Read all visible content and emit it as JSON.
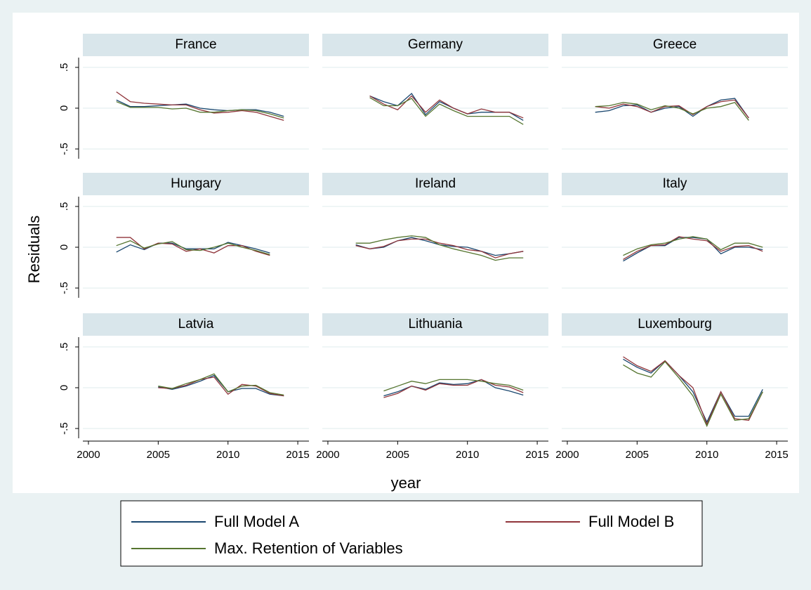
{
  "chart_data": {
    "type": "line",
    "xlabel": "year",
    "ylabel": "Residuals",
    "xlim": [
      1999.6,
      2015.8
    ],
    "xticks": [
      2000,
      2005,
      2010,
      2015
    ],
    "ylim": [
      -0.62,
      0.62
    ],
    "yticks": [
      {
        "value": 0.5,
        "label": ".5"
      },
      0,
      {
        "value": -0.5,
        "label": "-.5"
      }
    ],
    "grid": true,
    "series": [
      {
        "name": "Full Model A",
        "color": "#1a476f"
      },
      {
        "name": "Full Model B",
        "color": "#90353b"
      },
      {
        "name": "Max. Retention of Variables",
        "color": "#55752f"
      }
    ],
    "panels": [
      {
        "title": "France",
        "x": [
          2002,
          2003,
          2004,
          2005,
          2006,
          2007,
          2008,
          2009,
          2010,
          2011,
          2012,
          2013,
          2014
        ],
        "values": [
          [
            0.1,
            0.02,
            0.02,
            0.03,
            0.04,
            0.05,
            0,
            -0.02,
            -0.03,
            -0.02,
            -0.02,
            -0.05,
            -0.1
          ],
          [
            0.2,
            0.08,
            0.06,
            0.05,
            0.04,
            0.04,
            -0.02,
            -0.06,
            -0.05,
            -0.03,
            -0.05,
            -0.1,
            -0.15
          ],
          [
            0.08,
            0.01,
            0.01,
            0.01,
            -0.01,
            0,
            -0.05,
            -0.05,
            -0.03,
            -0.02,
            -0.03,
            -0.07,
            -0.12
          ]
        ]
      },
      {
        "title": "Germany",
        "x": [
          2003,
          2004,
          2005,
          2006,
          2007,
          2008,
          2009,
          2010,
          2011,
          2012,
          2013,
          2014
        ],
        "values": [
          [
            0.15,
            0.08,
            0.03,
            0.18,
            -0.08,
            0.08,
            0,
            -0.07,
            -0.05,
            -0.05,
            -0.05,
            -0.15
          ],
          [
            0.15,
            0.05,
            -0.02,
            0.15,
            -0.05,
            0.1,
            0,
            -0.07,
            -0.01,
            -0.05,
            -0.05,
            -0.12
          ],
          [
            0.13,
            0.03,
            0.03,
            0.12,
            -0.1,
            0.05,
            -0.03,
            -0.1,
            -0.1,
            -0.1,
            -0.1,
            -0.2
          ]
        ]
      },
      {
        "title": "Greece",
        "x": [
          2002,
          2003,
          2004,
          2005,
          2006,
          2007,
          2008,
          2009,
          2010,
          2011,
          2012,
          2013
        ],
        "values": [
          [
            -0.05,
            -0.03,
            0.03,
            0.04,
            -0.05,
            0,
            0.02,
            -0.1,
            0.02,
            0.1,
            0.12,
            -0.12
          ],
          [
            0.02,
            0,
            0.05,
            0.02,
            -0.05,
            0.02,
            0.03,
            -0.08,
            0.02,
            0.08,
            0.1,
            -0.12
          ],
          [
            0.02,
            0.03,
            0.07,
            0.05,
            -0.02,
            0.03,
            0,
            -0.07,
            0,
            0.02,
            0.07,
            -0.15
          ]
        ]
      },
      {
        "title": "Hungary",
        "x": [
          2002,
          2003,
          2004,
          2005,
          2006,
          2007,
          2008,
          2009,
          2010,
          2011,
          2012,
          2013
        ],
        "values": [
          [
            -0.06,
            0.03,
            -0.03,
            0.05,
            0.05,
            -0.02,
            -0.02,
            -0.02,
            0.06,
            0.02,
            -0.02,
            -0.07
          ],
          [
            0.12,
            0.12,
            -0.02,
            0.05,
            0.04,
            -0.05,
            -0.02,
            -0.07,
            0.02,
            0.02,
            -0.05,
            -0.1
          ],
          [
            0.02,
            0.08,
            -0.01,
            0.04,
            0.07,
            -0.03,
            -0.04,
            0,
            0.05,
            0,
            -0.04,
            -0.09
          ]
        ]
      },
      {
        "title": "Ireland",
        "x": [
          2002,
          2003,
          2004,
          2005,
          2006,
          2007,
          2008,
          2009,
          2010,
          2011,
          2012,
          2013,
          2014
        ],
        "values": [
          [
            0.03,
            -0.02,
            0,
            0.08,
            0.12,
            0.08,
            0.03,
            0.01,
            0,
            -0.05,
            -0.1,
            -0.08,
            -0.05
          ],
          [
            0.02,
            -0.02,
            0.01,
            0.08,
            0.1,
            0.1,
            0.05,
            0.02,
            -0.03,
            -0.05,
            -0.13,
            -0.08,
            -0.05
          ],
          [
            0.05,
            0.05,
            0.09,
            0.12,
            0.14,
            0.12,
            0.03,
            -0.02,
            -0.06,
            -0.1,
            -0.16,
            -0.13,
            -0.13
          ]
        ]
      },
      {
        "title": "Italy",
        "x": [
          2004,
          2005,
          2006,
          2007,
          2008,
          2009,
          2010,
          2011,
          2012,
          2013,
          2014
        ],
        "values": [
          [
            -0.17,
            -0.07,
            0.02,
            0.02,
            0.12,
            0.12,
            0.1,
            -0.08,
            0,
            0,
            -0.03
          ],
          [
            -0.15,
            -0.05,
            0.02,
            0.03,
            0.13,
            0.1,
            0.08,
            -0.05,
            0.01,
            0.02,
            -0.05
          ],
          [
            -0.1,
            -0.02,
            0.03,
            0.05,
            0.1,
            0.13,
            0.1,
            -0.03,
            0.05,
            0.05,
            0
          ]
        ]
      },
      {
        "title": "Latvia",
        "x": [
          2005,
          2006,
          2007,
          2008,
          2009,
          2010,
          2011,
          2012,
          2013,
          2014
        ],
        "values": [
          [
            0.01,
            -0.02,
            0.02,
            0.08,
            0.15,
            -0.05,
            -0.01,
            -0.01,
            -0.08,
            -0.1
          ],
          [
            0,
            -0.01,
            0.03,
            0.1,
            0.13,
            -0.08,
            0.04,
            0.02,
            -0.07,
            -0.1
          ],
          [
            0.02,
            -0.01,
            0.05,
            0.1,
            0.17,
            -0.05,
            0.02,
            0.03,
            -0.06,
            -0.09
          ]
        ]
      },
      {
        "title": "Lithuania",
        "x": [
          2004,
          2005,
          2006,
          2007,
          2008,
          2009,
          2010,
          2011,
          2012,
          2013,
          2014
        ],
        "values": [
          [
            -0.1,
            -0.05,
            0.02,
            -0.02,
            0.06,
            0.04,
            0.05,
            0.1,
            0,
            -0.04,
            -0.09
          ],
          [
            -0.12,
            -0.07,
            0.02,
            -0.03,
            0.05,
            0.03,
            0.03,
            0.1,
            0.03,
            0.01,
            -0.06
          ],
          [
            -0.04,
            0.02,
            0.08,
            0.05,
            0.1,
            0.1,
            0.1,
            0.08,
            0.05,
            0.03,
            -0.03
          ]
        ]
      },
      {
        "title": "Luxembourg",
        "x": [
          2004,
          2005,
          2006,
          2007,
          2008,
          2009,
          2010,
          2011,
          2012,
          2013,
          2014
        ],
        "values": [
          [
            0.35,
            0.25,
            0.18,
            0.33,
            0.15,
            -0.05,
            -0.42,
            -0.05,
            -0.35,
            -0.35,
            -0.02
          ],
          [
            0.38,
            0.27,
            0.2,
            0.33,
            0.15,
            0,
            -0.45,
            -0.05,
            -0.38,
            -0.4,
            -0.05
          ],
          [
            0.28,
            0.18,
            0.13,
            0.32,
            0.12,
            -0.1,
            -0.47,
            -0.08,
            -0.4,
            -0.38,
            -0.05
          ]
        ]
      }
    ]
  }
}
